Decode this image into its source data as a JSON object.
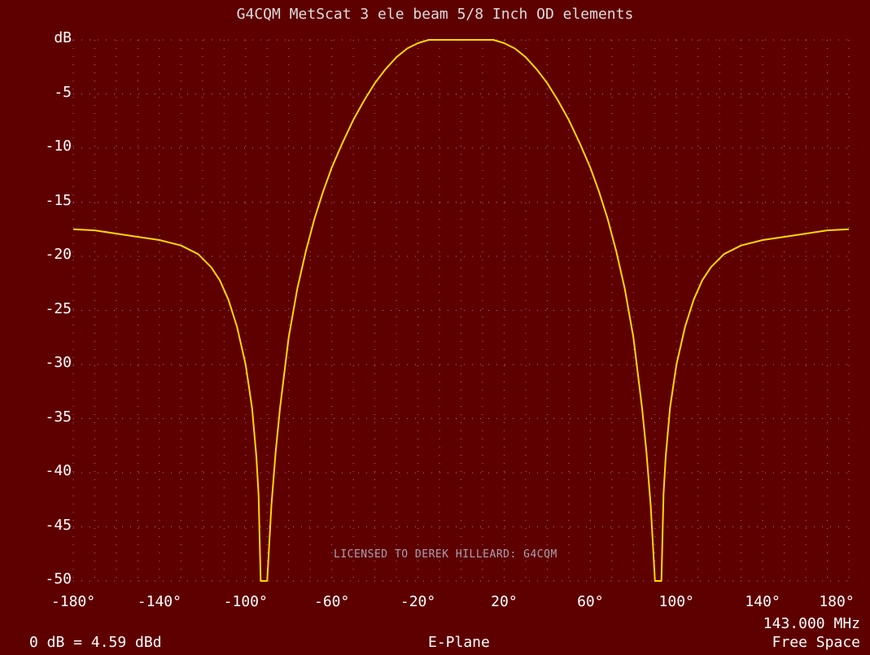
{
  "colors": {
    "background": "#5e0000",
    "grid": "#9aa7d6",
    "trace": "#ffd700",
    "text": "#ffffff",
    "licence_text": "#a9a0b0"
  },
  "header": {
    "title": "G4CQM MetScat 3 ele beam 5/8 Inch OD elements"
  },
  "footer": {
    "reference": "0 dB = 4.59 dBd",
    "plane": "E-Plane",
    "frequency": "143.000 MHz",
    "environment": "Free Space"
  },
  "licence": "LICENSED TO DEREK HILLEARD: G4CQM",
  "chart_data": {
    "type": "line",
    "title": "G4CQM MetScat 3 ele beam 5/8 Inch OD elements",
    "xlabel": "",
    "ylabel": "dB",
    "xlim": [
      -180,
      180
    ],
    "ylim": [
      -50,
      0
    ],
    "grid": true,
    "x_ticks": [
      -180,
      -140,
      -100,
      -60,
      -20,
      20,
      60,
      100,
      140,
      180
    ],
    "x_tick_labels": [
      "-180°",
      "-140°",
      "-100°",
      "-60°",
      "-20°",
      "20°",
      "60°",
      "100°",
      "140°",
      "180°"
    ],
    "y_ticks": [
      0,
      -5,
      -10,
      -15,
      -20,
      -25,
      -30,
      -35,
      -40,
      -45,
      -50
    ],
    "y_tick_labels": [
      "dB",
      "-5",
      "-10",
      "-15",
      "-20",
      "-25",
      "-30",
      "-35",
      "-40",
      "-45",
      "-50"
    ],
    "series": [
      {
        "x": [
          -180,
          -170,
          -160,
          -150,
          -140,
          -130,
          -122,
          -116,
          -112,
          -108,
          -104,
          -100,
          -97,
          -95,
          -94,
          -93.5,
          -93,
          -92,
          -91,
          -90.5,
          -90,
          -88,
          -86,
          -84,
          -80,
          -76,
          -72,
          -68,
          -64,
          -60,
          -55,
          -50,
          -45,
          -40,
          -35,
          -30,
          -25,
          -20,
          -15,
          -10,
          -5,
          0,
          5,
          10,
          15,
          20,
          25,
          30,
          35,
          40,
          45,
          50,
          55,
          60,
          64,
          68,
          72,
          76,
          80,
          84,
          86,
          88,
          90,
          90.5,
          91,
          92,
          93,
          93.5,
          94,
          95,
          97,
          100,
          104,
          108,
          112,
          116,
          122,
          130,
          140,
          150,
          160,
          170,
          180
        ],
        "values": [
          -17.5,
          -17.6,
          -17.9,
          -18.2,
          -18.5,
          -19,
          -19.8,
          -21,
          -22.2,
          -24,
          -26.5,
          -30,
          -34,
          -38.5,
          -42,
          -46,
          -50,
          -50,
          -50,
          -50,
          -50,
          -43,
          -38,
          -34,
          -27.5,
          -23,
          -19.5,
          -16.5,
          -14,
          -11.8,
          -9.5,
          -7.4,
          -5.6,
          -4,
          -2.7,
          -1.6,
          -0.8,
          -0.3,
          0,
          0,
          0,
          0,
          0,
          0,
          0,
          -0.3,
          -0.8,
          -1.6,
          -2.7,
          -4,
          -5.6,
          -7.4,
          -9.5,
          -11.8,
          -14,
          -16.5,
          -19.5,
          -23,
          -27.5,
          -34,
          -38,
          -43,
          -50,
          -50,
          -50,
          -50,
          -50,
          -46,
          -42,
          -38.5,
          -34,
          -30,
          -26.5,
          -24,
          -22.2,
          -21,
          -19.8,
          -19,
          -18.5,
          -18.2,
          -17.9,
          -17.6,
          -17.5
        ]
      }
    ]
  }
}
